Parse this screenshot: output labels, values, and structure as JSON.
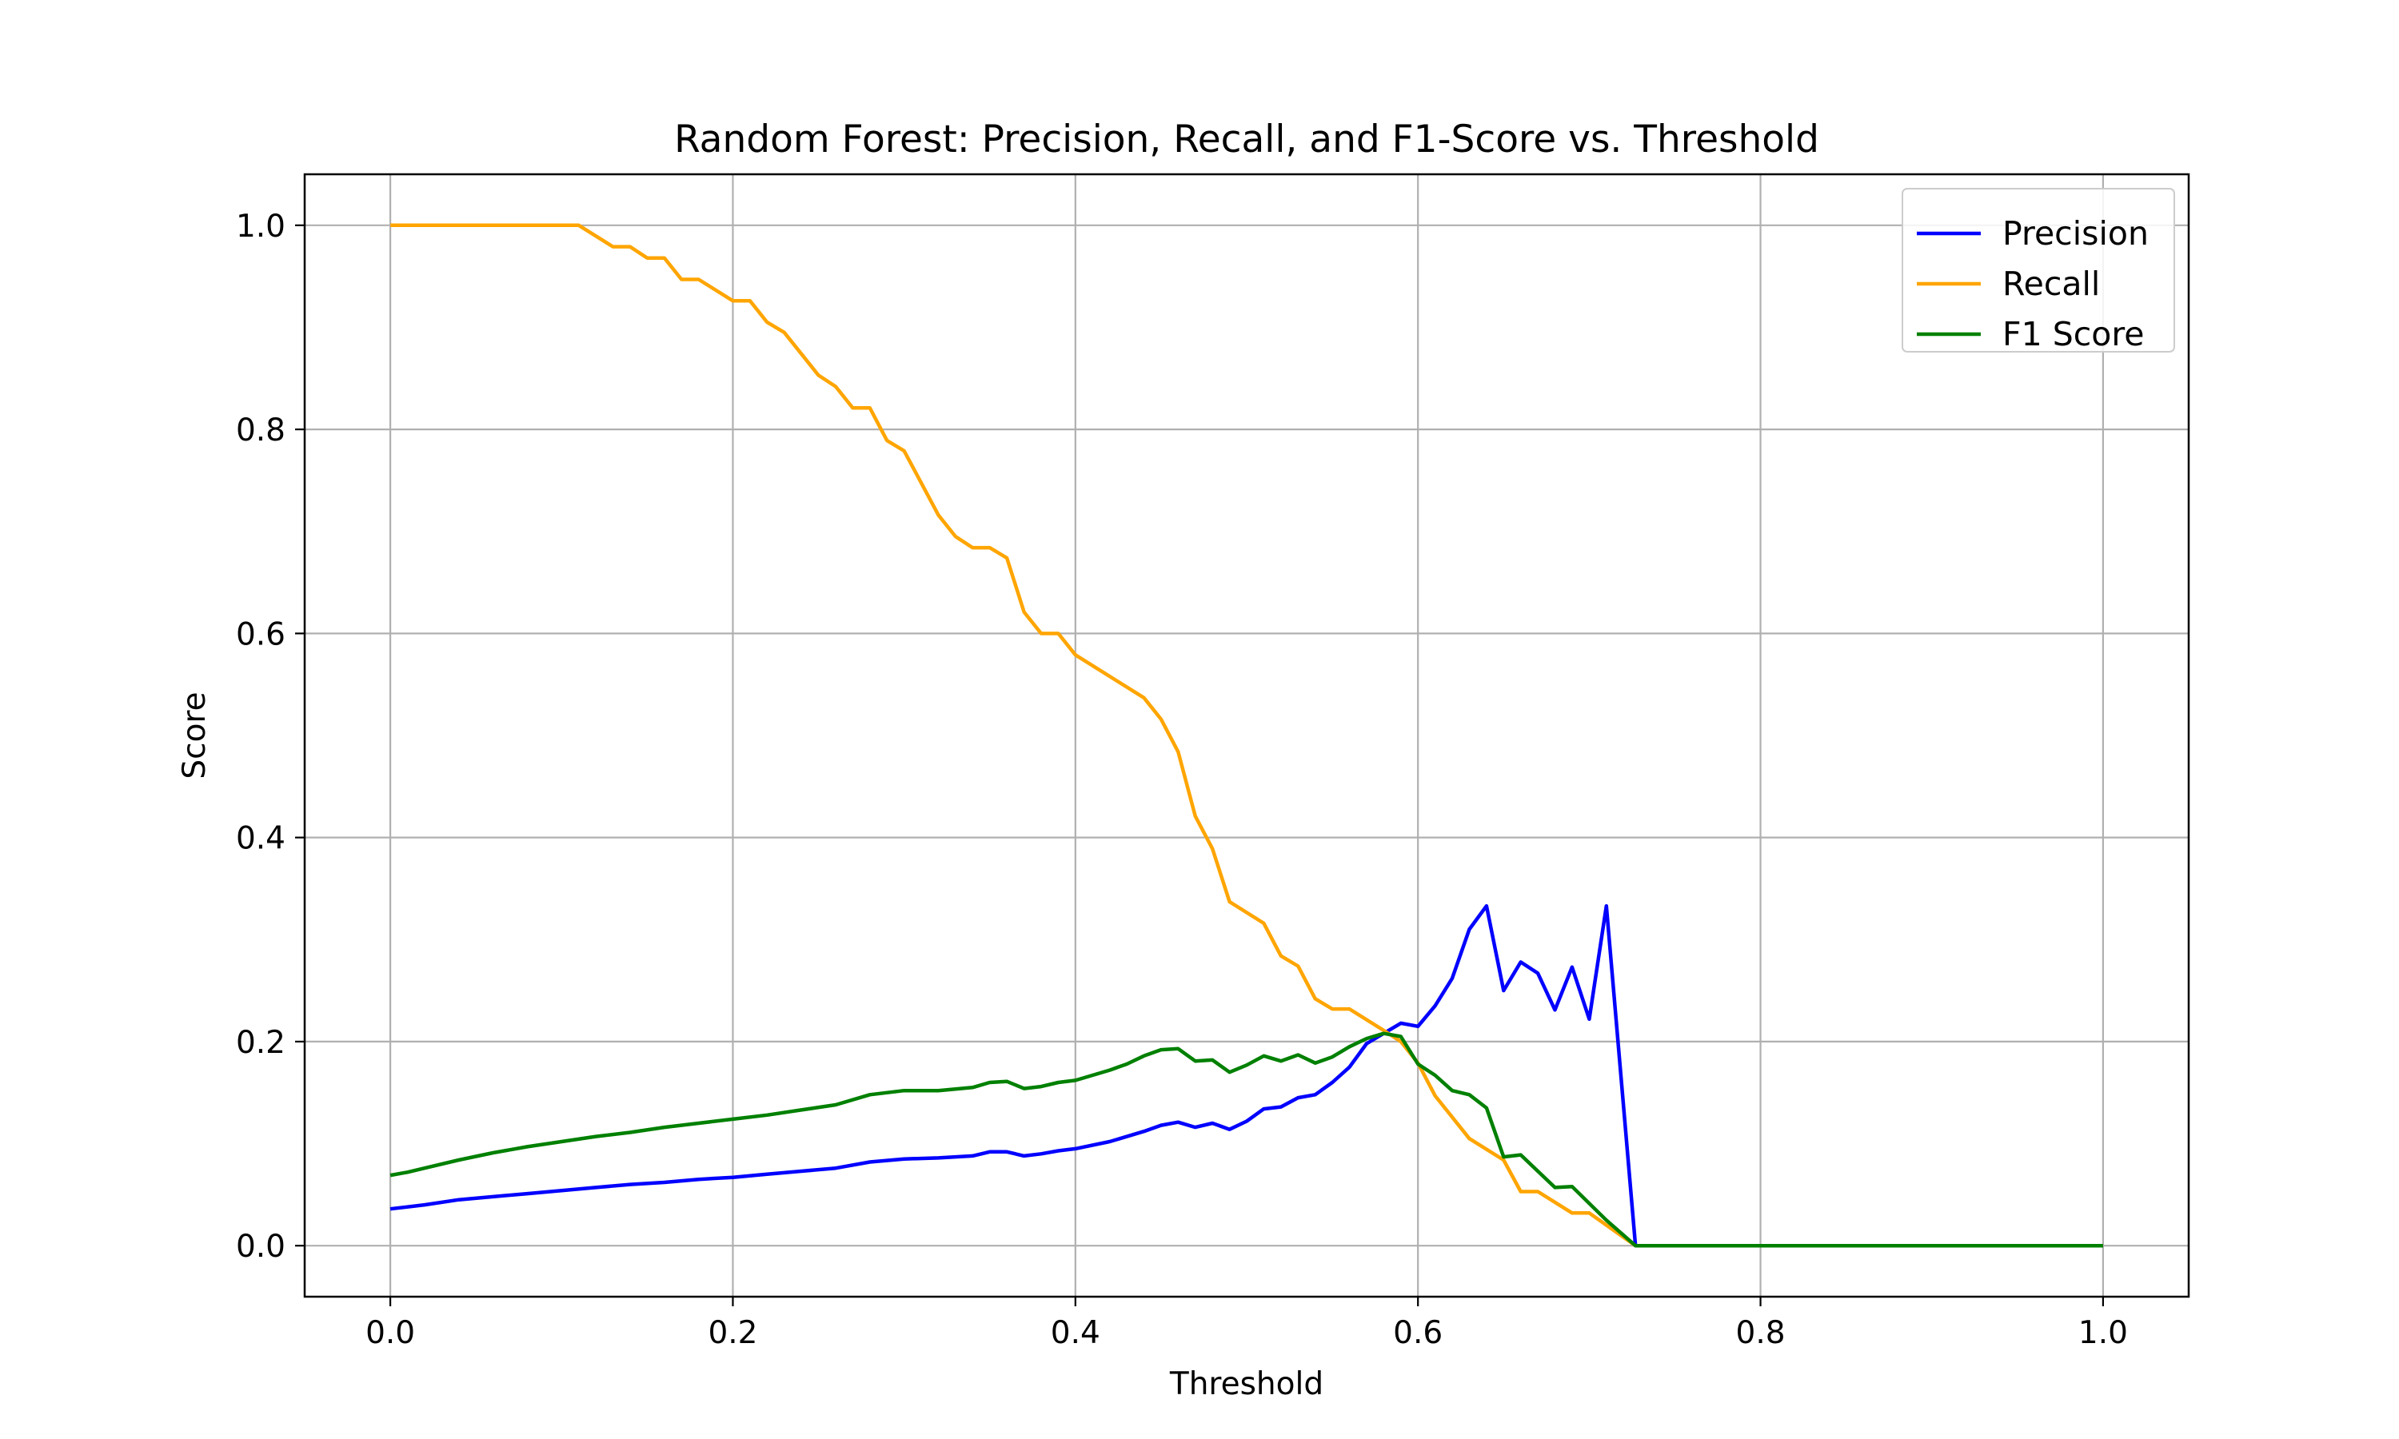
{
  "chart_data": {
    "type": "line",
    "title": "Random Forest: Precision, Recall, and F1-Score vs. Threshold",
    "xlabel": "Threshold",
    "ylabel": "Score",
    "xlim": [
      -0.05,
      1.05
    ],
    "ylim": [
      -0.05,
      1.05
    ],
    "xticks": [
      "0.0",
      "0.2",
      "0.4",
      "0.6",
      "0.8",
      "1.0"
    ],
    "yticks": [
      "0.0",
      "0.2",
      "0.4",
      "0.6",
      "0.8",
      "1.0"
    ],
    "grid": true,
    "legend_position": "top-right",
    "series": [
      {
        "name": "Precision",
        "color": "#0000ff",
        "points": [
          [
            0,
            0.036
          ],
          [
            0.02,
            0.04
          ],
          [
            0.04,
            0.045
          ],
          [
            0.06,
            0.048
          ],
          [
            0.08,
            0.051
          ],
          [
            0.1,
            0.054
          ],
          [
            0.12,
            0.057
          ],
          [
            0.14,
            0.06
          ],
          [
            0.16,
            0.062
          ],
          [
            0.18,
            0.065
          ],
          [
            0.2,
            0.067
          ],
          [
            0.22,
            0.07
          ],
          [
            0.24,
            0.073
          ],
          [
            0.26,
            0.076
          ],
          [
            0.28,
            0.082
          ],
          [
            0.3,
            0.085
          ],
          [
            0.32,
            0.086
          ],
          [
            0.34,
            0.088
          ],
          [
            0.35,
            0.092
          ],
          [
            0.36,
            0.092
          ],
          [
            0.37,
            0.088
          ],
          [
            0.38,
            0.09
          ],
          [
            0.39,
            0.093
          ],
          [
            0.4,
            0.095
          ],
          [
            0.42,
            0.102
          ],
          [
            0.44,
            0.112
          ],
          [
            0.45,
            0.118
          ],
          [
            0.46,
            0.121
          ],
          [
            0.47,
            0.116
          ],
          [
            0.48,
            0.12
          ],
          [
            0.49,
            0.114
          ],
          [
            0.5,
            0.122
          ],
          [
            0.51,
            0.134
          ],
          [
            0.52,
            0.136
          ],
          [
            0.53,
            0.145
          ],
          [
            0.54,
            0.148
          ],
          [
            0.55,
            0.16
          ],
          [
            0.56,
            0.175
          ],
          [
            0.57,
            0.198
          ],
          [
            0.58,
            0.208
          ],
          [
            0.59,
            0.218
          ],
          [
            0.6,
            0.215
          ],
          [
            0.61,
            0.235
          ],
          [
            0.62,
            0.262
          ],
          [
            0.63,
            0.31
          ],
          [
            0.64,
            0.333
          ],
          [
            0.65,
            0.25
          ],
          [
            0.66,
            0.278
          ],
          [
            0.67,
            0.267
          ],
          [
            0.68,
            0.231
          ],
          [
            0.69,
            0.273
          ],
          [
            0.7,
            0.222
          ],
          [
            0.71,
            0.333
          ],
          [
            0.727,
            0.0
          ],
          [
            1.0,
            0.0
          ]
        ]
      },
      {
        "name": "Recall",
        "color": "#ffa500",
        "points": [
          [
            0,
            1.0
          ],
          [
            0.11,
            1.0
          ],
          [
            0.13,
            0.979
          ],
          [
            0.14,
            0.979
          ],
          [
            0.15,
            0.968
          ],
          [
            0.16,
            0.968
          ],
          [
            0.17,
            0.947
          ],
          [
            0.18,
            0.947
          ],
          [
            0.2,
            0.926
          ],
          [
            0.21,
            0.926
          ],
          [
            0.22,
            0.905
          ],
          [
            0.23,
            0.895
          ],
          [
            0.25,
            0.853
          ],
          [
            0.26,
            0.842
          ],
          [
            0.27,
            0.821
          ],
          [
            0.28,
            0.821
          ],
          [
            0.29,
            0.789
          ],
          [
            0.3,
            0.779
          ],
          [
            0.32,
            0.716
          ],
          [
            0.33,
            0.695
          ],
          [
            0.34,
            0.684
          ],
          [
            0.35,
            0.684
          ],
          [
            0.36,
            0.674
          ],
          [
            0.37,
            0.621
          ],
          [
            0.38,
            0.6
          ],
          [
            0.39,
            0.6
          ],
          [
            0.4,
            0.579
          ],
          [
            0.44,
            0.537
          ],
          [
            0.45,
            0.516
          ],
          [
            0.46,
            0.484
          ],
          [
            0.47,
            0.421
          ],
          [
            0.48,
            0.389
          ],
          [
            0.49,
            0.337
          ],
          [
            0.51,
            0.316
          ],
          [
            0.52,
            0.284
          ],
          [
            0.53,
            0.274
          ],
          [
            0.54,
            0.242
          ],
          [
            0.55,
            0.232
          ],
          [
            0.56,
            0.232
          ],
          [
            0.58,
            0.211
          ],
          [
            0.59,
            0.2
          ],
          [
            0.6,
            0.179
          ],
          [
            0.61,
            0.147
          ],
          [
            0.63,
            0.105
          ],
          [
            0.65,
            0.084
          ],
          [
            0.66,
            0.053
          ],
          [
            0.67,
            0.053
          ],
          [
            0.69,
            0.032
          ],
          [
            0.7,
            0.032
          ],
          [
            0.727,
            0.0
          ],
          [
            1.0,
            0.0
          ]
        ]
      },
      {
        "name": "F1 Score",
        "color": "#008000",
        "points": [
          [
            0,
            0.069
          ],
          [
            0.01,
            0.072
          ],
          [
            0.02,
            0.076
          ],
          [
            0.04,
            0.084
          ],
          [
            0.06,
            0.091
          ],
          [
            0.08,
            0.097
          ],
          [
            0.1,
            0.102
          ],
          [
            0.12,
            0.107
          ],
          [
            0.14,
            0.111
          ],
          [
            0.16,
            0.116
          ],
          [
            0.18,
            0.12
          ],
          [
            0.2,
            0.124
          ],
          [
            0.22,
            0.128
          ],
          [
            0.24,
            0.133
          ],
          [
            0.26,
            0.138
          ],
          [
            0.28,
            0.148
          ],
          [
            0.3,
            0.152
          ],
          [
            0.32,
            0.152
          ],
          [
            0.34,
            0.155
          ],
          [
            0.35,
            0.16
          ],
          [
            0.36,
            0.161
          ],
          [
            0.37,
            0.154
          ],
          [
            0.38,
            0.156
          ],
          [
            0.39,
            0.16
          ],
          [
            0.4,
            0.162
          ],
          [
            0.42,
            0.172
          ],
          [
            0.43,
            0.178
          ],
          [
            0.44,
            0.186
          ],
          [
            0.45,
            0.192
          ],
          [
            0.46,
            0.193
          ],
          [
            0.47,
            0.181
          ],
          [
            0.48,
            0.182
          ],
          [
            0.49,
            0.17
          ],
          [
            0.5,
            0.177
          ],
          [
            0.51,
            0.186
          ],
          [
            0.52,
            0.181
          ],
          [
            0.53,
            0.187
          ],
          [
            0.54,
            0.179
          ],
          [
            0.55,
            0.185
          ],
          [
            0.56,
            0.195
          ],
          [
            0.57,
            0.203
          ],
          [
            0.58,
            0.208
          ],
          [
            0.59,
            0.205
          ],
          [
            0.6,
            0.178
          ],
          [
            0.61,
            0.167
          ],
          [
            0.62,
            0.152
          ],
          [
            0.63,
            0.148
          ],
          [
            0.64,
            0.135
          ],
          [
            0.65,
            0.087
          ],
          [
            0.66,
            0.089
          ],
          [
            0.67,
            0.073
          ],
          [
            0.68,
            0.057
          ],
          [
            0.69,
            0.058
          ],
          [
            0.71,
            0.025
          ],
          [
            0.727,
            0.0
          ],
          [
            1.0,
            0.0
          ]
        ]
      }
    ]
  }
}
